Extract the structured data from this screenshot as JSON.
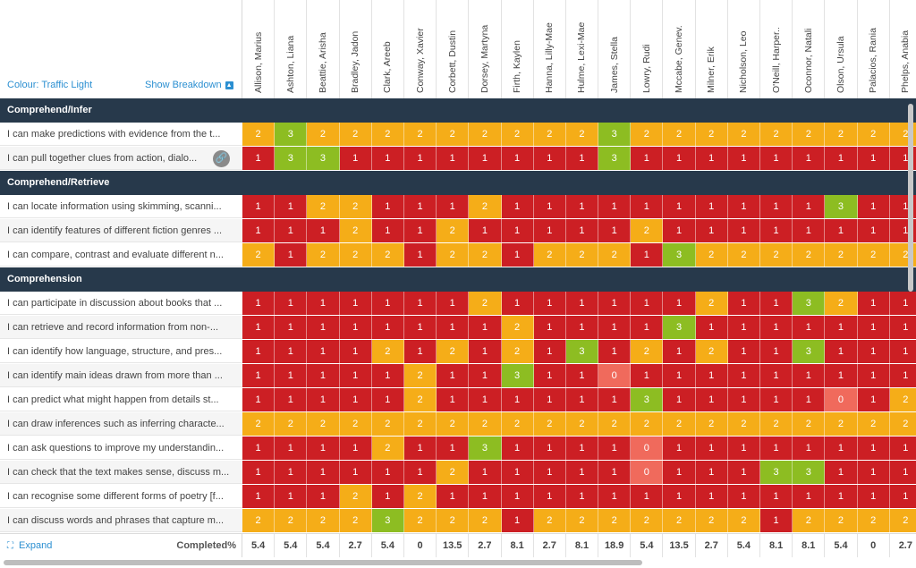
{
  "toolbar": {
    "colour_label": "Colour: Traffic Light",
    "breakdown_label": "Show Breakdown",
    "breakdown_icon": "chevron-up-icon"
  },
  "students": [
    "Allison, Marius",
    "Ashton, Liana",
    "Beattie, Arisha",
    "Bradley, Jadon",
    "Clark, Areeb",
    "Conway, Xavier",
    "Corbett, Dustin",
    "Dorsey, Martyna",
    "Firth, Kaylen",
    "Hanna, Lilly-Mae",
    "Hulme, Lexi-Mae",
    "James, Stella",
    "Lowry, Rudi",
    "Mccabe, Genev.",
    "Milner, Erik",
    "Nicholson, Leo",
    "O'Neill, Harper..",
    "Oconnor, Natali",
    "Olson, Ursula",
    "Palacios, Rania",
    "Phelps, Anabia"
  ],
  "sections": [
    {
      "title": "Comprehend/Infer",
      "rows": [
        {
          "label": "I can make predictions with evidence from the t...",
          "values": [
            2,
            3,
            2,
            2,
            2,
            2,
            2,
            2,
            2,
            2,
            2,
            3,
            2,
            2,
            2,
            2,
            2,
            2,
            2,
            2,
            2
          ]
        },
        {
          "label": "I can pull together clues from action, dialo...",
          "link_icon": "link-icon",
          "values": [
            1,
            3,
            3,
            1,
            1,
            1,
            1,
            1,
            1,
            1,
            1,
            3,
            1,
            1,
            1,
            1,
            1,
            1,
            1,
            1,
            1
          ]
        }
      ]
    },
    {
      "title": "Comprehend/Retrieve",
      "rows": [
        {
          "label": "I can locate information using skimming, scanni...",
          "values": [
            1,
            1,
            2,
            2,
            1,
            1,
            1,
            2,
            1,
            1,
            1,
            1,
            1,
            1,
            1,
            1,
            1,
            1,
            3,
            1,
            1
          ]
        },
        {
          "label": "I can identify features of different fiction genres ...",
          "values": [
            1,
            1,
            1,
            2,
            1,
            1,
            2,
            1,
            1,
            1,
            1,
            1,
            2,
            1,
            1,
            1,
            1,
            1,
            1,
            1,
            1
          ]
        },
        {
          "label": "I can compare, contrast and evaluate different n...",
          "values": [
            2,
            1,
            2,
            2,
            2,
            1,
            2,
            2,
            1,
            2,
            2,
            2,
            1,
            3,
            2,
            2,
            2,
            2,
            2,
            2,
            2
          ]
        }
      ]
    },
    {
      "title": "Comprehension",
      "rows": [
        {
          "label": "I can participate in discussion about books that ...",
          "values": [
            1,
            1,
            1,
            1,
            1,
            1,
            1,
            2,
            1,
            1,
            1,
            1,
            1,
            1,
            2,
            1,
            1,
            3,
            2,
            1,
            1
          ]
        },
        {
          "label": "I can retrieve and record information from non-...",
          "values": [
            1,
            1,
            1,
            1,
            1,
            1,
            1,
            1,
            2,
            1,
            1,
            1,
            1,
            3,
            1,
            1,
            1,
            1,
            1,
            1,
            1
          ]
        },
        {
          "label": "I can identify how language, structure, and pres...",
          "values": [
            1,
            1,
            1,
            1,
            2,
            1,
            2,
            1,
            2,
            1,
            3,
            1,
            2,
            1,
            2,
            1,
            1,
            3,
            1,
            1,
            1
          ]
        },
        {
          "label": "I can identify main ideas drawn from more than ...",
          "values": [
            1,
            1,
            1,
            1,
            1,
            2,
            1,
            1,
            3,
            1,
            1,
            0,
            1,
            1,
            1,
            1,
            1,
            1,
            1,
            1,
            1
          ]
        },
        {
          "label": "I can predict what might happen from details st...",
          "values": [
            1,
            1,
            1,
            1,
            1,
            2,
            1,
            1,
            1,
            1,
            1,
            1,
            3,
            1,
            1,
            1,
            1,
            1,
            0,
            1,
            2
          ]
        },
        {
          "label": "I can draw inferences such as inferring characte...",
          "values": [
            2,
            2,
            2,
            2,
            2,
            2,
            2,
            2,
            2,
            2,
            2,
            2,
            2,
            2,
            2,
            2,
            2,
            2,
            2,
            2,
            2
          ]
        },
        {
          "label": "I can ask questions to improve my understandin...",
          "values": [
            1,
            1,
            1,
            1,
            2,
            1,
            1,
            3,
            1,
            1,
            1,
            1,
            0,
            1,
            1,
            1,
            1,
            1,
            1,
            1,
            1
          ]
        },
        {
          "label": "I can check that the text makes sense, discuss m...",
          "values": [
            1,
            1,
            1,
            1,
            1,
            1,
            2,
            1,
            1,
            1,
            1,
            1,
            0,
            1,
            1,
            1,
            3,
            3,
            1,
            1,
            1
          ]
        },
        {
          "label": "I can recognise some different forms of poetry [f...",
          "values": [
            1,
            1,
            1,
            2,
            1,
            2,
            1,
            1,
            1,
            1,
            1,
            1,
            1,
            1,
            1,
            1,
            1,
            1,
            1,
            1,
            1
          ]
        },
        {
          "label": "I can discuss words and phrases that capture m...",
          "values": [
            2,
            2,
            2,
            2,
            3,
            2,
            2,
            2,
            1,
            2,
            2,
            2,
            2,
            2,
            2,
            2,
            1,
            2,
            2,
            2,
            2
          ]
        }
      ]
    }
  ],
  "footer": {
    "expand_label": "Expand",
    "expand_icon": "expand-icon",
    "completed_label": "Completed%",
    "completed": [
      "5.4",
      "5.4",
      "5.4",
      "2.7",
      "5.4",
      "0",
      "13.5",
      "2.7",
      "8.1",
      "2.7",
      "8.1",
      "18.9",
      "5.4",
      "13.5",
      "2.7",
      "5.4",
      "8.1",
      "8.1",
      "5.4",
      "0",
      "2.7"
    ]
  },
  "colors": {
    "score_0": "#f06a5c",
    "score_1": "#cc1f24",
    "score_2": "#f5ad18",
    "score_3": "#8dbd22",
    "section_bg": "#27394b",
    "link": "#2b8fd1"
  }
}
